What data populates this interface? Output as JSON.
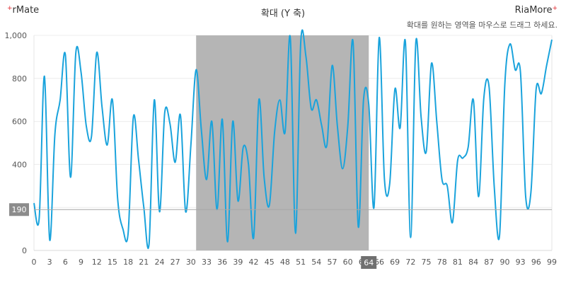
{
  "brand": {
    "left": "rMate",
    "right": "RiaMore",
    "plus": "+"
  },
  "chart_data": {
    "type": "line",
    "title": "확대 (Y 축)",
    "hint": "확대를 원하는 영역을 마우스로 드래그 하세요.",
    "xlabel": "",
    "ylabel": "",
    "xlim": [
      0,
      99
    ],
    "ylim": [
      0,
      1000
    ],
    "x_ticks": [
      0,
      3,
      6,
      9,
      12,
      15,
      18,
      21,
      24,
      27,
      30,
      33,
      36,
      39,
      42,
      45,
      48,
      51,
      54,
      57,
      60,
      63,
      66,
      69,
      72,
      75,
      78,
      81,
      84,
      87,
      90,
      93,
      96,
      99
    ],
    "y_ticks": [
      0,
      200,
      400,
      600,
      800,
      1000
    ],
    "y_tick_labels": [
      "0",
      "200",
      "400",
      "600",
      "800",
      "1,000"
    ],
    "grid": true,
    "line_color": "#1aa3dc",
    "selection": {
      "x_start": 31,
      "x_end": 64,
      "color": "#b5b5b5"
    },
    "crosshair": {
      "y": 190,
      "y_label": "190",
      "x": 64,
      "x_label": "64"
    },
    "series": [
      {
        "values": [
          220,
          150,
          810,
          50,
          540,
          700,
          910,
          340,
          920,
          830,
          580,
          530,
          920,
          670,
          490,
          700,
          240,
          100,
          80,
          620,
          420,
          200,
          30,
          700,
          180,
          640,
          590,
          410,
          630,
          180,
          490,
          840,
          560,
          330,
          600,
          190,
          610,
          40,
          600,
          230,
          480,
          400,
          60,
          700,
          340,
          210,
          550,
          700,
          550,
          990,
          80,
          970,
          900,
          660,
          700,
          580,
          490,
          860,
          580,
          380,
          580,
          970,
          110,
          700,
          680,
          200,
          990,
          330,
          310,
          750,
          570,
          970,
          60,
          970,
          620,
          460,
          870,
          600,
          330,
          300,
          130,
          420,
          430,
          480,
          700,
          250,
          710,
          760,
          290,
          70,
          770,
          960,
          840,
          830,
          250,
          270,
          750,
          730,
          860,
          980
        ]
      }
    ]
  }
}
